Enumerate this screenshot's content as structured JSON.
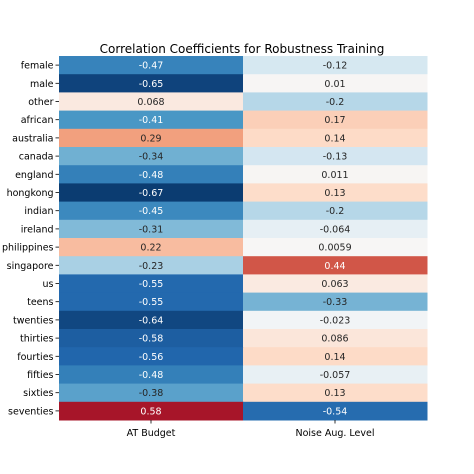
{
  "chart_data": {
    "type": "heatmap",
    "title": "Correlation Coefficients for Robustness Training",
    "columns": [
      "AT Budget",
      "Noise Aug. Level"
    ],
    "rows": [
      "female",
      "male",
      "other",
      "african",
      "australia",
      "canada",
      "england",
      "hongkong",
      "indian",
      "ireland",
      "philippines",
      "singapore",
      "us",
      "teens",
      "twenties",
      "thirties",
      "fourties",
      "fifties",
      "sixties",
      "seventies"
    ],
    "values": [
      [
        -0.47,
        -0.12
      ],
      [
        -0.65,
        0.01
      ],
      [
        0.068,
        -0.2
      ],
      [
        -0.41,
        0.17
      ],
      [
        0.29,
        0.14
      ],
      [
        -0.34,
        -0.13
      ],
      [
        -0.48,
        0.011
      ],
      [
        -0.67,
        0.13
      ],
      [
        -0.45,
        -0.2
      ],
      [
        -0.31,
        -0.064
      ],
      [
        0.22,
        0.0059
      ],
      [
        -0.23,
        0.44
      ],
      [
        -0.55,
        0.063
      ],
      [
        -0.55,
        -0.33
      ],
      [
        -0.64,
        -0.023
      ],
      [
        -0.58,
        0.086
      ],
      [
        -0.56,
        0.14
      ],
      [
        -0.48,
        -0.057
      ],
      [
        -0.38,
        0.13
      ],
      [
        0.58,
        -0.54
      ]
    ],
    "labels": [
      [
        "-0.47",
        "-0.12"
      ],
      [
        "-0.65",
        "0.01"
      ],
      [
        "0.068",
        "-0.2"
      ],
      [
        "-0.41",
        "0.17"
      ],
      [
        "0.29",
        "0.14"
      ],
      [
        "-0.34",
        "-0.13"
      ],
      [
        "-0.48",
        "0.011"
      ],
      [
        "-0.67",
        "0.13"
      ],
      [
        "-0.45",
        "-0.2"
      ],
      [
        "-0.31",
        "-0.064"
      ],
      [
        "0.22",
        "0.0059"
      ],
      [
        "-0.23",
        "0.44"
      ],
      [
        "-0.55",
        "0.063"
      ],
      [
        "-0.55",
        "-0.33"
      ],
      [
        "-0.64",
        "-0.023"
      ],
      [
        "-0.58",
        "0.086"
      ],
      [
        "-0.56",
        "0.14"
      ],
      [
        "-0.48",
        "-0.057"
      ],
      [
        "-0.38",
        "0.13"
      ],
      [
        "0.58",
        "-0.54"
      ]
    ],
    "colormap": "RdBu_r",
    "vmin": -0.7,
    "vmax": 0.7,
    "colorbar": false,
    "grid": false
  }
}
